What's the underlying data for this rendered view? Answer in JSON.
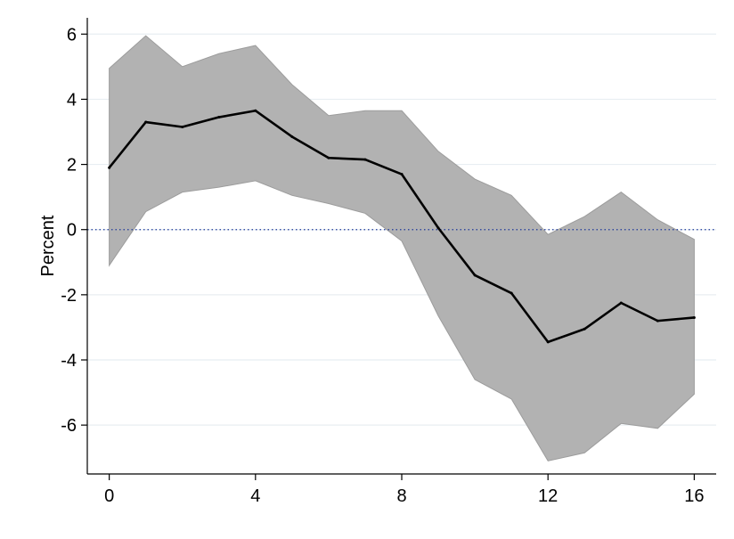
{
  "chart_data": {
    "type": "line",
    "title": "",
    "xlabel": "",
    "ylabel": "Percent",
    "x": [
      0,
      1,
      2,
      3,
      4,
      5,
      6,
      7,
      8,
      9,
      10,
      11,
      12,
      13,
      14,
      15,
      16
    ],
    "series": [
      {
        "values": [
          1.9,
          3.3,
          3.15,
          3.45,
          3.65,
          2.85,
          2.2,
          2.15,
          1.7,
          0.05,
          -1.4,
          -1.95,
          -3.45,
          -3.05,
          -2.25,
          -2.8,
          -2.7
        ],
        "color": "#000000"
      }
    ],
    "band": {
      "lower": [
        -1.1,
        0.55,
        1.15,
        1.3,
        1.5,
        1.05,
        0.8,
        0.5,
        -0.35,
        -2.65,
        -4.6,
        -5.2,
        -7.1,
        -6.85,
        -5.95,
        -6.1,
        -5.05
      ],
      "upper": [
        4.95,
        5.95,
        5.0,
        5.4,
        5.65,
        4.45,
        3.5,
        3.65,
        3.65,
        2.4,
        1.55,
        1.05,
        -0.15,
        0.4,
        1.15,
        0.3,
        -0.3
      ],
      "color": "#b2b2b2"
    },
    "reference_line": {
      "y": 0,
      "style": "dotted",
      "color": "#1f3a9a"
    },
    "xticks": [
      0,
      4,
      8,
      12,
      16
    ],
    "yticks": [
      -6,
      -4,
      -2,
      0,
      2,
      4,
      6
    ],
    "xlim": [
      -0.6,
      16.6
    ],
    "ylim": [
      -7.5,
      6.5
    ],
    "grid": true,
    "grid_color": "#e8eef2",
    "legend": "none"
  }
}
